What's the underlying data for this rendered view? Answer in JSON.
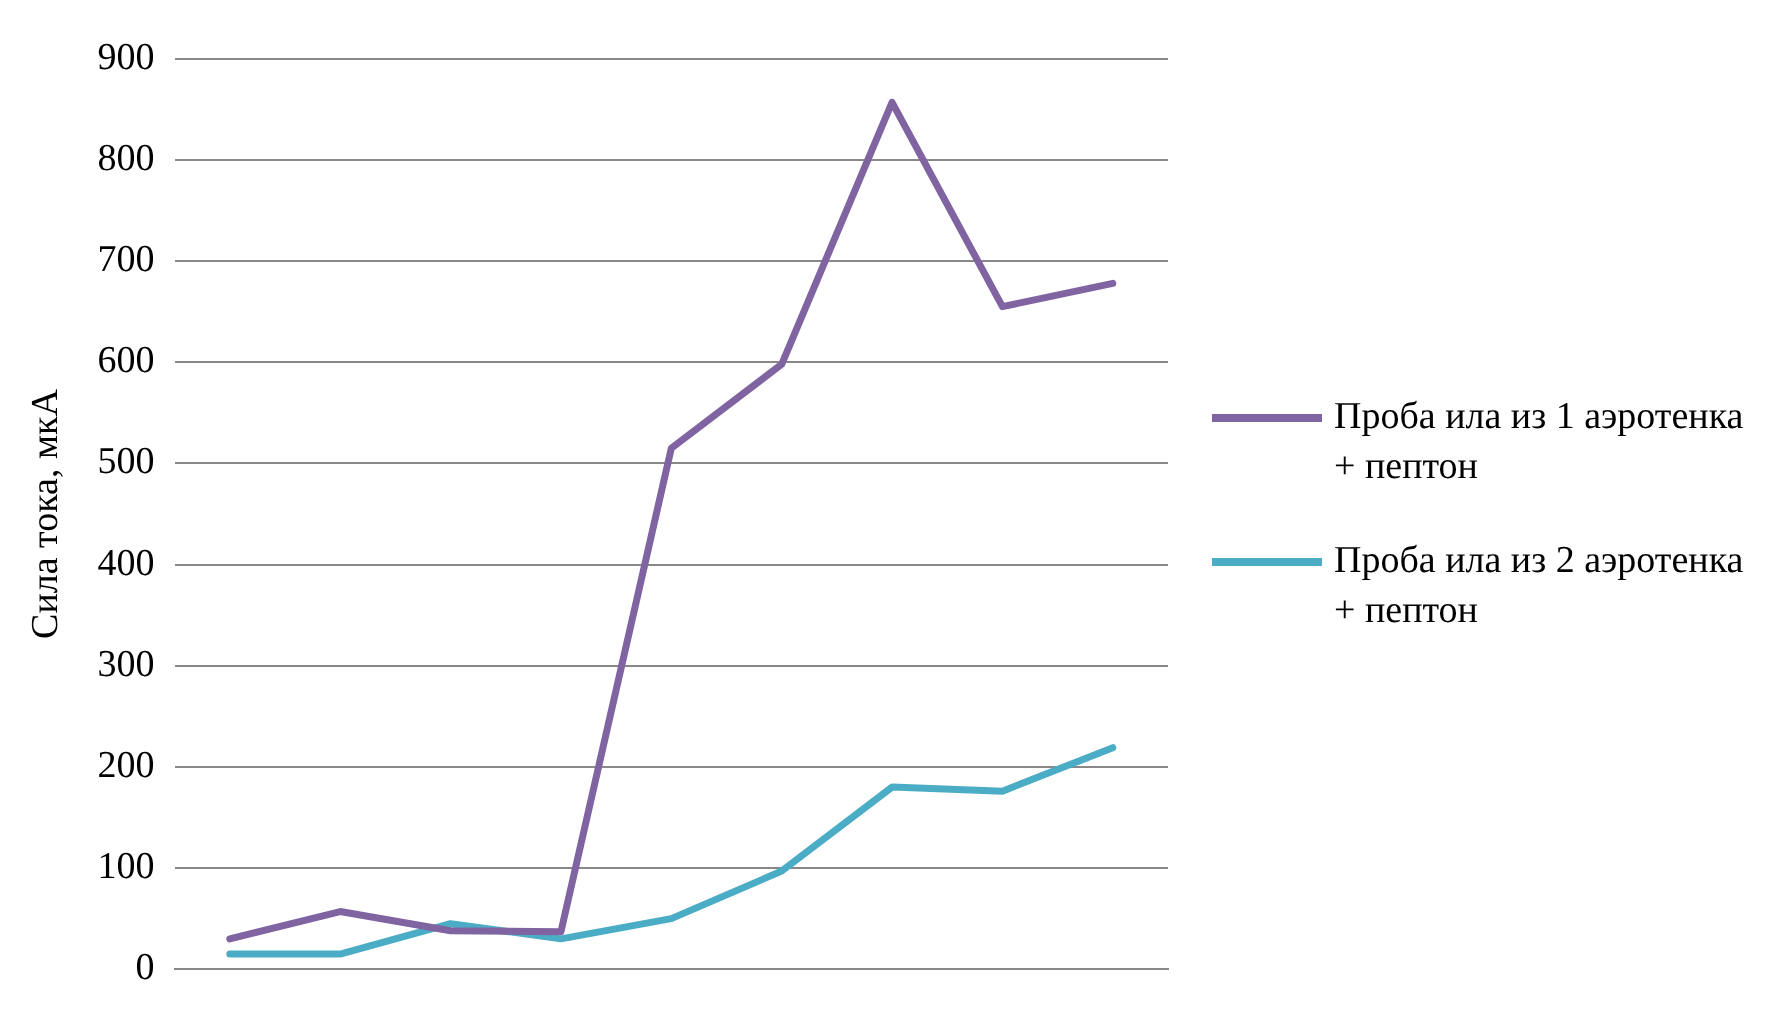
{
  "chart_data": {
    "type": "line",
    "ylabel": "Сила тока, мкА",
    "categories": [
      null,
      null,
      null,
      null,
      null,
      null,
      null,
      null,
      null
    ],
    "series": [
      {
        "name": "Проба ила из 1 аэротенка + пептон",
        "color": "#8064a2",
        "values": [
          30,
          57,
          38,
          37,
          515,
          598,
          857,
          655,
          678
        ]
      },
      {
        "name": "Проба ила из 2 аэротенка + пептон",
        "color": "#4bacc6",
        "values": [
          15,
          15,
          45,
          30,
          50,
          97,
          180,
          176,
          219
        ]
      }
    ],
    "ylim": [
      0,
      900
    ],
    "yticks": [
      0,
      100,
      200,
      300,
      400,
      500,
      600,
      700,
      800,
      900
    ],
    "grid": "y",
    "legend": "right",
    "tick_labels": "y",
    "marker": "none",
    "line_style": "solid"
  }
}
